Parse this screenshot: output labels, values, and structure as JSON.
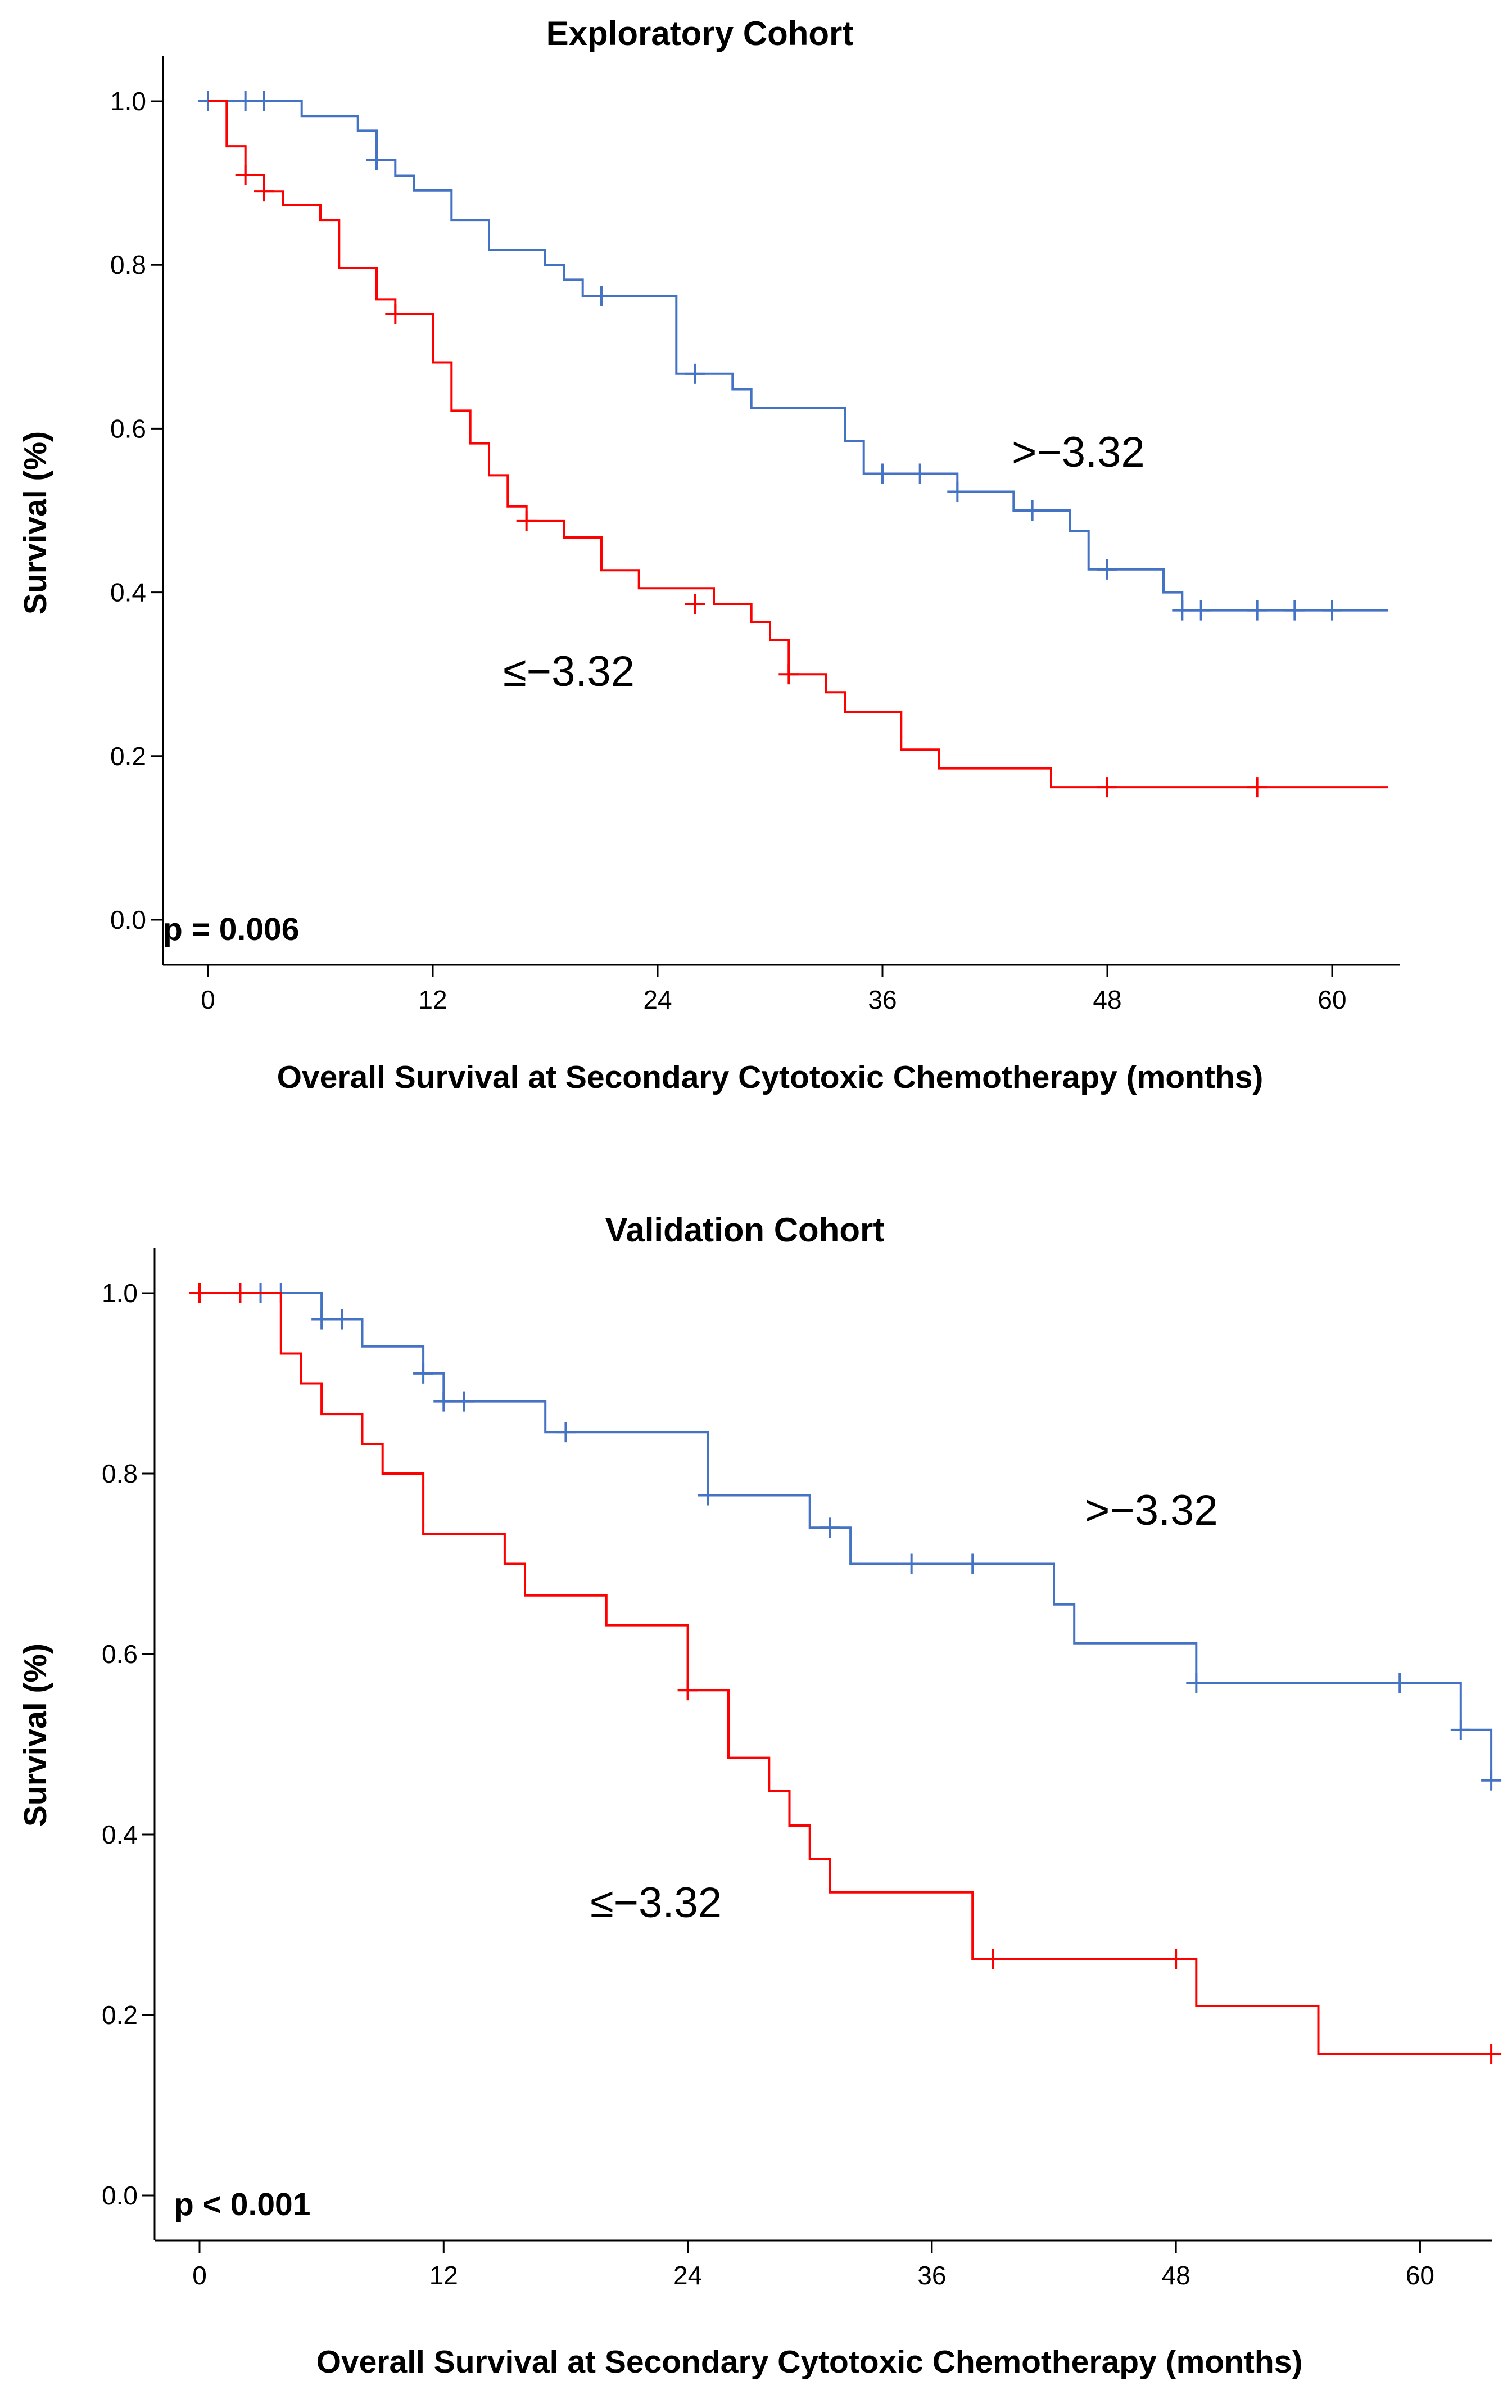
{
  "chart_data": [
    {
      "type": "line",
      "subtype": "kaplan-meier",
      "title": "Exploratory Cohort",
      "xlabel": "Overall Survival at Secondary Cytotoxic Chemotherapy (months)",
      "ylabel": "Survival (%)",
      "xlim": [
        0,
        63
      ],
      "ylim": [
        0,
        1.0
      ],
      "xticks": [
        0,
        12,
        24,
        36,
        48,
        60
      ],
      "yticks": [
        0.0,
        0.2,
        0.4,
        0.6,
        0.8,
        1.0
      ],
      "p_value_text": "p = 0.006",
      "series": [
        {
          "name": ">−3.32",
          "color": "#4472c4",
          "x": [
            0,
            5,
            8,
            9,
            10,
            11,
            13,
            15,
            18,
            19,
            20,
            21,
            25,
            28,
            29,
            31,
            34,
            35,
            40,
            43,
            46,
            47,
            51,
            52,
            63
          ],
          "y": [
            1.0,
            0.982,
            0.964,
            0.928,
            0.909,
            0.891,
            0.855,
            0.818,
            0.8,
            0.782,
            0.762,
            0.762,
            0.667,
            0.648,
            0.625,
            0.625,
            0.585,
            0.545,
            0.523,
            0.5,
            0.475,
            0.428,
            0.4,
            0.378,
            0.378
          ],
          "censored_x": [
            0,
            2,
            3,
            9,
            21,
            26,
            36,
            38,
            40,
            44,
            48,
            52,
            53,
            56,
            58,
            60
          ],
          "censored_y": [
            1.0,
            1.0,
            1.0,
            0.928,
            0.762,
            0.667,
            0.545,
            0.545,
            0.523,
            0.5,
            0.428,
            0.378,
            0.378,
            0.378,
            0.378,
            0.378
          ]
        },
        {
          "name": "≤−3.32",
          "color": "#ff0000",
          "x": [
            0,
            1,
            2,
            3,
            4,
            6,
            7,
            9,
            10,
            12,
            13,
            14,
            15,
            16,
            17,
            19,
            21,
            23,
            27,
            29,
            30,
            31,
            33,
            34,
            37,
            39,
            45,
            63
          ],
          "y": [
            1.0,
            0.945,
            0.91,
            0.89,
            0.873,
            0.855,
            0.796,
            0.758,
            0.74,
            0.681,
            0.622,
            0.582,
            0.543,
            0.505,
            0.487,
            0.467,
            0.427,
            0.405,
            0.386,
            0.364,
            0.342,
            0.3,
            0.278,
            0.254,
            0.208,
            0.185,
            0.162,
            0.162
          ],
          "censored_x": [
            2,
            3,
            10,
            17,
            26,
            31,
            48,
            56
          ],
          "censored_y": [
            0.91,
            0.89,
            0.74,
            0.487,
            0.386,
            0.3,
            0.162,
            0.162
          ]
        }
      ]
    },
    {
      "type": "line",
      "subtype": "kaplan-meier",
      "title": "Validation Cohort",
      "xlabel": "Overall Survival at Secondary Cytotoxic Chemotherapy (months)",
      "ylabel": "Survival (%)",
      "xlim": [
        0,
        63
      ],
      "ylim": [
        0,
        1.0
      ],
      "xticks": [
        0,
        12,
        24,
        36,
        48,
        60
      ],
      "yticks": [
        0.0,
        0.2,
        0.4,
        0.6,
        0.8,
        1.0
      ],
      "p_value_text": "p < 0.001",
      "series": [
        {
          "name": ">−3.32",
          "color": "#4472c4",
          "x": [
            0,
            6,
            8,
            11,
            12,
            17,
            25,
            30,
            32,
            42,
            43,
            49,
            62,
            63.5
          ],
          "y": [
            1.0,
            0.971,
            0.941,
            0.911,
            0.88,
            0.846,
            0.776,
            0.74,
            0.7,
            0.655,
            0.612,
            0.568,
            0.516,
            0.46
          ],
          "censored_x": [
            0,
            2,
            3,
            4,
            6,
            7,
            11,
            12,
            13,
            18,
            25,
            31,
            35,
            38,
            49,
            59,
            62,
            63.5
          ],
          "censored_y": [
            1.0,
            1.0,
            1.0,
            1.0,
            0.971,
            0.971,
            0.911,
            0.88,
            0.88,
            0.846,
            0.776,
            0.74,
            0.7,
            0.7,
            0.568,
            0.568,
            0.516,
            0.46
          ]
        },
        {
          "name": "≤−3.32",
          "color": "#ff0000",
          "x": [
            0,
            4,
            5,
            6,
            8,
            9,
            11,
            15,
            16,
            20,
            24,
            26,
            28,
            29,
            30,
            31,
            38,
            49,
            55,
            63.5
          ],
          "y": [
            1.0,
            0.933,
            0.9,
            0.866,
            0.833,
            0.8,
            0.733,
            0.7,
            0.665,
            0.632,
            0.56,
            0.485,
            0.448,
            0.41,
            0.373,
            0.336,
            0.262,
            0.21,
            0.157,
            0.157
          ],
          "censored_x": [
            0,
            2,
            24,
            39,
            48,
            63.5
          ],
          "censored_y": [
            1.0,
            1.0,
            0.56,
            0.262,
            0.262,
            0.157
          ]
        }
      ]
    }
  ]
}
